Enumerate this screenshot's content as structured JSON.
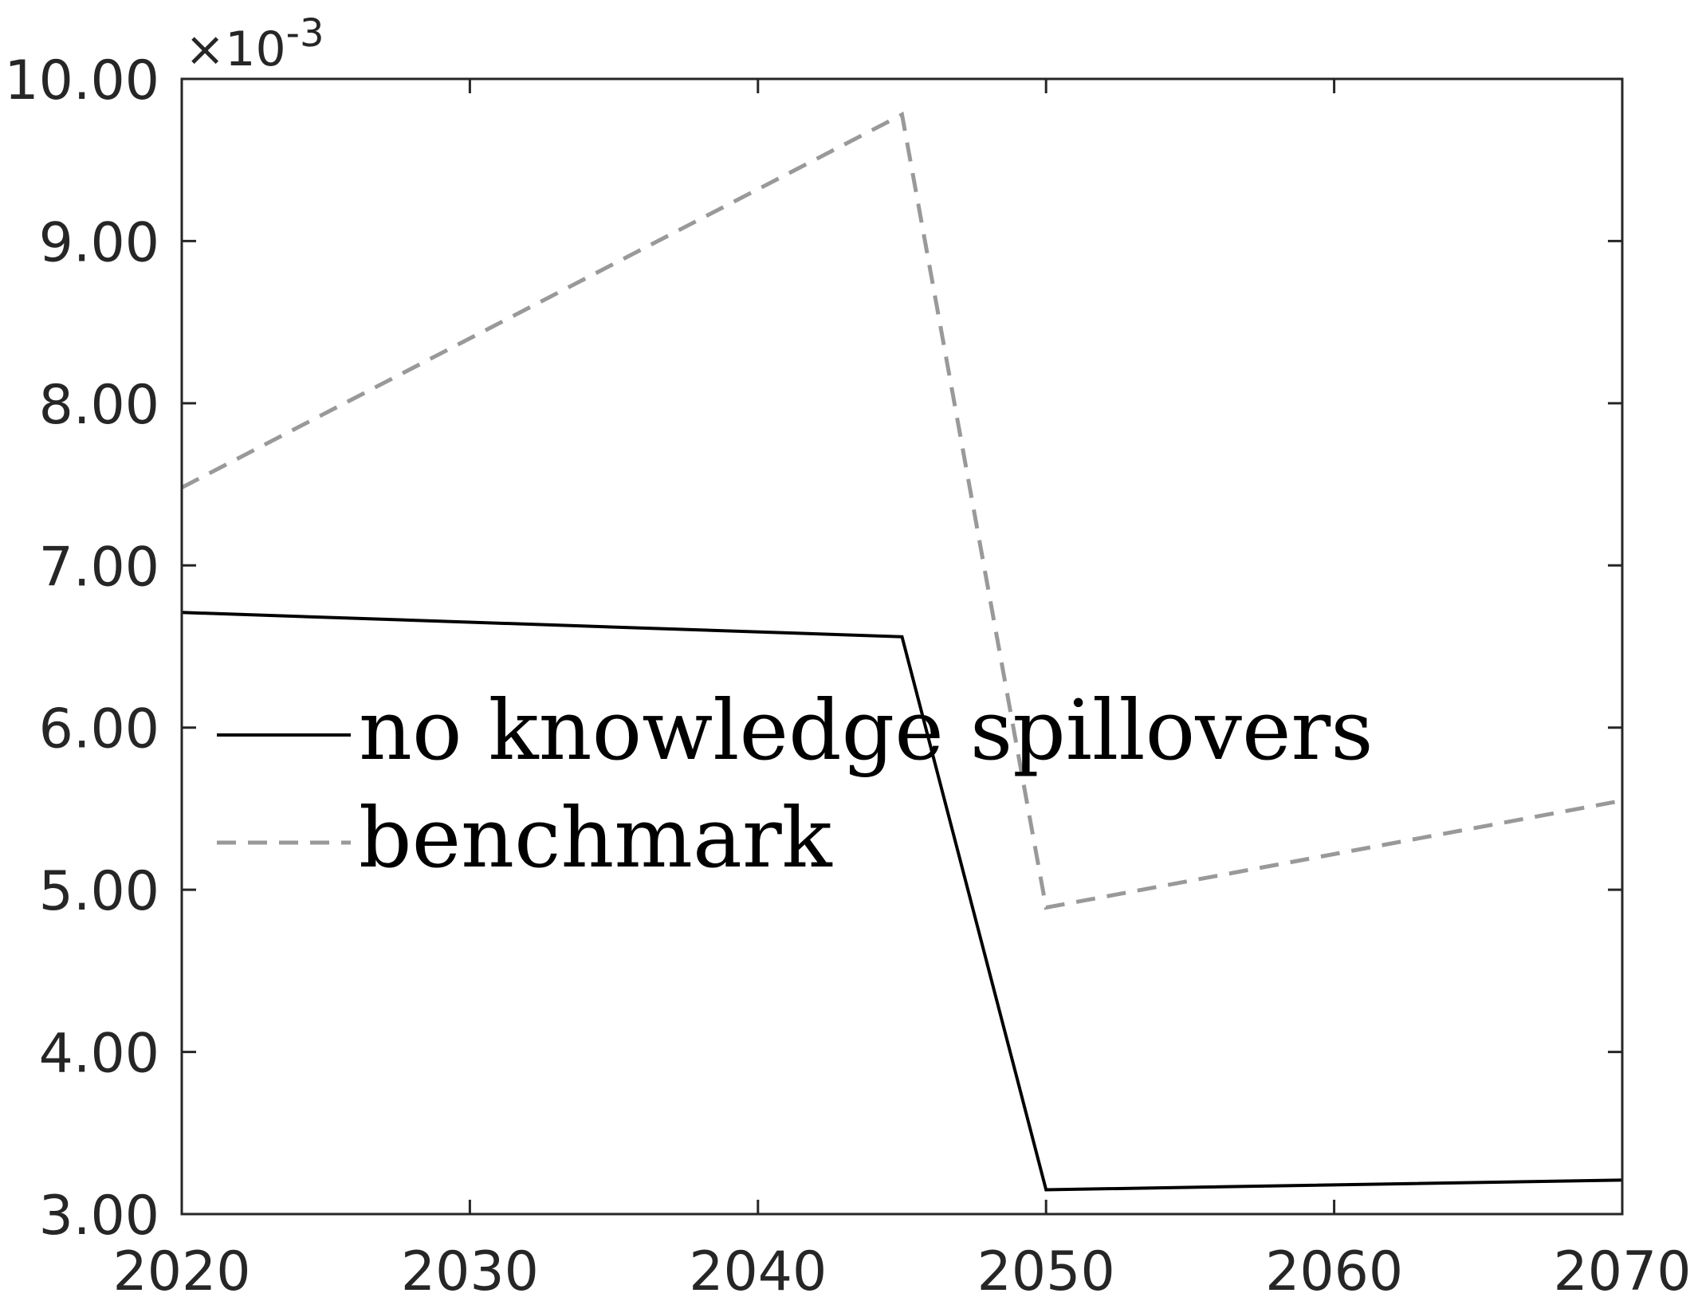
{
  "chart_data": {
    "type": "line",
    "title": "",
    "xlabel": "",
    "ylabel": "",
    "xlim": [
      2020,
      2070
    ],
    "ylim": [
      3.0,
      10.0
    ],
    "y_scale_note": "×10-3",
    "y_exponent": {
      "base": "×10",
      "power": "-3"
    },
    "x_ticks": [
      2020,
      2030,
      2040,
      2050,
      2060,
      2070
    ],
    "x_tick_labels": [
      "2020",
      "2030",
      "2040",
      "2050",
      "2060",
      "2070"
    ],
    "y_ticks": [
      3.0,
      4.0,
      5.0,
      6.0,
      7.0,
      8.0,
      9.0,
      10.0
    ],
    "y_tick_labels": [
      "3.00",
      "4.00",
      "5.00",
      "6.00",
      "7.00",
      "8.00",
      "9.00",
      "10.00"
    ],
    "grid": false,
    "legend_position": "center-left",
    "series": [
      {
        "name": "no knowledge spillovers",
        "color": "#000000",
        "style": "solid",
        "x": [
          2020,
          2045,
          2050,
          2070
        ],
        "y": [
          6.71,
          6.56,
          3.15,
          3.21
        ]
      },
      {
        "name": "benchmark",
        "color": "#999999",
        "style": "dashed",
        "x": [
          2020,
          2045,
          2050,
          2070
        ],
        "y": [
          7.48,
          9.78,
          4.89,
          5.55
        ]
      }
    ]
  }
}
